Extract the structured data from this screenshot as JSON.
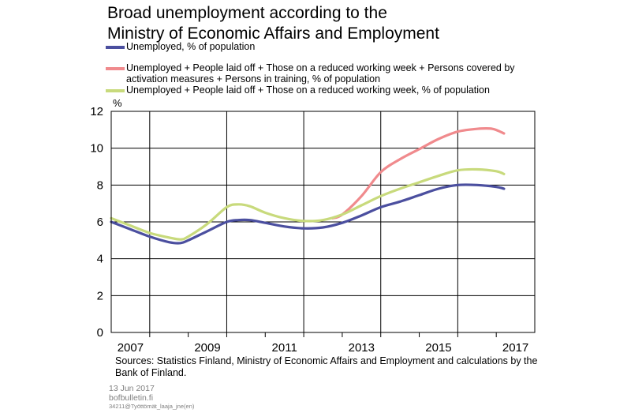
{
  "title_line1": "Broad unemployment according to the",
  "title_line2": "Ministry of Economic Affairs and Employment",
  "legend": [
    {
      "label": "Unemployed, % of population",
      "color": "#4b4f9f"
    },
    {
      "label": "Unemployed + People laid off + Those on a reduced working week + Persons covered by activation measures + Persons in training, % of population",
      "color": "#f08a8d"
    },
    {
      "label": "Unemployed + People laid off + Those on a reduced working week, % of population",
      "color": "#c8da7c"
    }
  ],
  "source": "Sources: Statistics Finland, Ministry of Economic Affairs and Employment and calculations by the Bank of Finland.",
  "date": "13 Jun 2017",
  "site": "bofbulletin.fi",
  "code": "34211@Työttömät_laaja_jne(en)",
  "chart_data": {
    "type": "line",
    "ylabel": "%",
    "ylim": [
      0,
      12
    ],
    "yticks": [
      0,
      2,
      4,
      6,
      8,
      10,
      12
    ],
    "xlim": [
      2007.0,
      2018.0
    ],
    "xtick_labels": [
      "2007",
      "2009",
      "2011",
      "2013",
      "2015",
      "2017"
    ],
    "grid": true,
    "series": [
      {
        "name": "Unemployed, % of population",
        "color": "#4b4f9f",
        "x": [
          2007.0,
          2007.5,
          2008.0,
          2008.5,
          2008.8,
          2009.0,
          2009.5,
          2010.0,
          2010.3,
          2010.6,
          2011.0,
          2011.5,
          2012.0,
          2012.5,
          2013.0,
          2013.5,
          2014.0,
          2014.5,
          2015.0,
          2015.5,
          2016.0,
          2016.5,
          2017.0,
          2017.2
        ],
        "y": [
          6.0,
          5.6,
          5.2,
          4.9,
          4.85,
          5.0,
          5.5,
          6.0,
          6.1,
          6.1,
          5.95,
          5.75,
          5.65,
          5.7,
          5.95,
          6.35,
          6.8,
          7.1,
          7.45,
          7.8,
          8.0,
          8.0,
          7.9,
          7.8
        ]
      },
      {
        "name": "Unemployed + People laid off + Those on a reduced working week + Persons covered by activation measures + Persons in training, % of population",
        "color": "#f08a8d",
        "x": [
          2012.75,
          2013.0,
          2013.5,
          2014.0,
          2014.5,
          2015.0,
          2015.5,
          2016.0,
          2016.5,
          2016.9,
          2017.2
        ],
        "y": [
          6.2,
          6.4,
          7.4,
          8.7,
          9.4,
          9.95,
          10.5,
          10.9,
          11.05,
          11.05,
          10.8
        ]
      },
      {
        "name": "Unemployed + People laid off + Those on a reduced working week, % of population",
        "color": "#c8da7c",
        "x": [
          2007.0,
          2007.5,
          2008.0,
          2008.5,
          2008.8,
          2009.0,
          2009.5,
          2010.0,
          2010.3,
          2010.6,
          2011.0,
          2011.5,
          2012.0,
          2012.5,
          2013.0,
          2013.5,
          2014.0,
          2014.5,
          2015.0,
          2015.5,
          2016.0,
          2016.5,
          2017.0,
          2017.2
        ],
        "y": [
          6.2,
          5.8,
          5.4,
          5.15,
          5.05,
          5.2,
          5.9,
          6.8,
          6.95,
          6.85,
          6.5,
          6.2,
          6.05,
          6.1,
          6.4,
          6.9,
          7.4,
          7.8,
          8.15,
          8.5,
          8.8,
          8.85,
          8.75,
          8.6
        ]
      }
    ]
  }
}
